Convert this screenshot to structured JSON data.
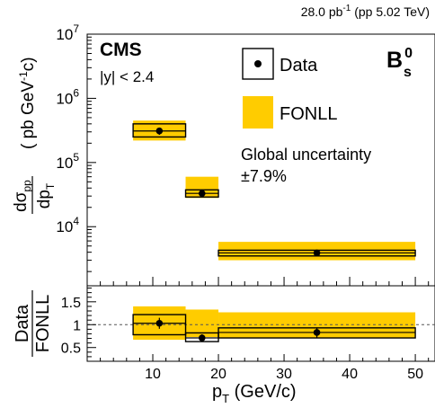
{
  "lumi_label": {
    "main": "28.0 pb",
    "sup": "-1",
    "tail": " (pp 5.02 TeV)"
  },
  "experiment": "CMS",
  "rapidity_cut": "|y| < 2.4",
  "particle": {
    "base": "B",
    "sup": "0",
    "sub": "s"
  },
  "global_uncertainty": {
    "line1": "Global uncertainty",
    "line2": "±7.9%"
  },
  "colors": {
    "fonll": "#ffcc00",
    "data": "#000000",
    "axis": "#000000",
    "ref_line": "#555555"
  },
  "legend": {
    "data_label": "Data",
    "fonll_label": "FONLL",
    "marker_icon": "black-dot-in-box"
  },
  "x_axis": {
    "label_main": "p",
    "label_sub": "T",
    "label_tail": " (GeV/c)",
    "ticks": [
      "10",
      "20",
      "30",
      "40",
      "50"
    ]
  },
  "y_axis_top": {
    "ticks": [
      {
        "base": "10",
        "exp": "4"
      },
      {
        "base": "10",
        "exp": "5"
      },
      {
        "base": "10",
        "exp": "6"
      },
      {
        "base": "10",
        "exp": "7"
      }
    ]
  },
  "y_axis_bottom": {
    "label_num": "Data",
    "label_den": "FONLL",
    "ticks": [
      "0.5",
      "1",
      "1.5"
    ]
  },
  "chart_data": [
    {
      "type": "scatter",
      "panel": "cross-section",
      "title": "",
      "xlabel": "pT (GeV/c)",
      "ylabel": "dσpp/dpT ( pb GeV-1c)",
      "yscale": "log",
      "xlim": [
        0,
        53
      ],
      "ylim": [
        1200,
        10000000
      ],
      "grid": false,
      "legend_position": "top-right",
      "series": [
        {
          "name": "Data",
          "points": [
            {
              "x": 11,
              "xlow": 7,
              "xhigh": 15,
              "y": 310000,
              "stat_err": 40000,
              "syst_low": 250000,
              "syst_high": 400000
            },
            {
              "x": 17.5,
              "xlow": 15,
              "xhigh": 20,
              "y": 33000,
              "stat_err": 4000,
              "syst_low": 29000,
              "syst_high": 37500
            },
            {
              "x": 35,
              "xlow": 20,
              "xhigh": 50,
              "y": 3900,
              "stat_err": 400,
              "syst_low": 3500,
              "syst_high": 4300
            }
          ]
        },
        {
          "name": "FONLL",
          "bands": [
            {
              "xlow": 7,
              "xhigh": 15,
              "low": 220000,
              "high": 450000
            },
            {
              "xlow": 15,
              "xhigh": 20,
              "low": 28000,
              "high": 60000
            },
            {
              "xlow": 20,
              "xhigh": 50,
              "low": 3000,
              "high": 5800
            }
          ]
        }
      ]
    },
    {
      "type": "scatter",
      "panel": "ratio",
      "title": "",
      "xlabel": "pT (GeV/c)",
      "ylabel": "Data / FONLL",
      "xlim": [
        0,
        53
      ],
      "ylim": [
        0.2,
        1.85
      ],
      "reference_line": 1,
      "grid": false,
      "series": [
        {
          "name": "Data/FONLL",
          "points": [
            {
              "x": 11,
              "xlow": 7,
              "xhigh": 15,
              "y": 1.03,
              "stat_err": 0.12,
              "syst_low": 0.78,
              "syst_high": 1.22
            },
            {
              "x": 17.5,
              "xlow": 15,
              "xhigh": 20,
              "y": 0.71,
              "stat_err": 0.08,
              "syst_low": 0.63,
              "syst_high": 0.82
            },
            {
              "x": 35,
              "xlow": 20,
              "xhigh": 50,
              "y": 0.83,
              "stat_err": 0.11,
              "syst_low": 0.71,
              "syst_high": 0.93
            }
          ],
          "bands": [
            {
              "xlow": 7,
              "xhigh": 15,
              "low": 0.67,
              "high": 1.4
            },
            {
              "xlow": 15,
              "xhigh": 20,
              "low": 0.73,
              "high": 1.33
            },
            {
              "xlow": 20,
              "xhigh": 50,
              "low": 0.7,
              "high": 1.27
            }
          ]
        }
      ]
    }
  ]
}
